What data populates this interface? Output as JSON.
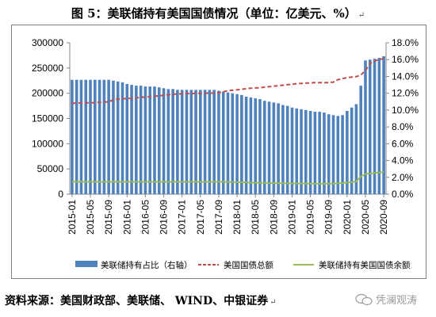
{
  "title": "图 5：美联储持有美国国债情况（单位：亿美元、%）",
  "title_mark": "↵",
  "source": "资料来源：美国财政部、美联储、 WIND、中银证券",
  "source_mark": "↵",
  "watermark": "凭澜观涛",
  "colors": {
    "bar": "#4f81bd",
    "total": "#c0504d",
    "fed": "#9bbb59"
  },
  "chart_data": {
    "type": "bar",
    "left_axis": {
      "ticks": [
        "0",
        "50000",
        "100000",
        "150000",
        "200000",
        "250000",
        "300000"
      ],
      "ylim": [
        0,
        300000
      ]
    },
    "right_axis": {
      "ticks": [
        "0.0%",
        "2.0%",
        "4.0%",
        "6.0%",
        "8.0%",
        "10.0%",
        "12.0%",
        "14.0%",
        "16.0%",
        "18.0%"
      ],
      "ylim": [
        0,
        18
      ]
    },
    "x_tick_labels": [
      "2015-01",
      "2015-05",
      "2015-09",
      "2016-01",
      "2016-05",
      "2016-09",
      "2017-01",
      "2017-05",
      "2017-09",
      "2018-01",
      "2018-05",
      "2018-09",
      "2019-01",
      "2019-05",
      "2019-09",
      "2020-01",
      "2020-05",
      "2020-09"
    ],
    "months": [
      "2015-01",
      "2015-02",
      "2015-03",
      "2015-04",
      "2015-05",
      "2015-06",
      "2015-07",
      "2015-08",
      "2015-09",
      "2015-10",
      "2015-11",
      "2015-12",
      "2016-01",
      "2016-02",
      "2016-03",
      "2016-04",
      "2016-05",
      "2016-06",
      "2016-07",
      "2016-08",
      "2016-09",
      "2016-10",
      "2016-11",
      "2016-12",
      "2017-01",
      "2017-02",
      "2017-03",
      "2017-04",
      "2017-05",
      "2017-06",
      "2017-07",
      "2017-08",
      "2017-09",
      "2017-10",
      "2017-11",
      "2017-12",
      "2018-01",
      "2018-02",
      "2018-03",
      "2018-04",
      "2018-05",
      "2018-06",
      "2018-07",
      "2018-08",
      "2018-09",
      "2018-10",
      "2018-11",
      "2018-12",
      "2019-01",
      "2019-02",
      "2019-03",
      "2019-04",
      "2019-05",
      "2019-06",
      "2019-07",
      "2019-08",
      "2019-09",
      "2019-10",
      "2019-11",
      "2019-12",
      "2020-01",
      "2020-02",
      "2020-03",
      "2020-04",
      "2020-05",
      "2020-06",
      "2020-07",
      "2020-08",
      "2020-09"
    ],
    "series": [
      {
        "name": "美联储持有占比（右轴）",
        "type": "bar",
        "axis": "right",
        "values": [
          13.6,
          13.6,
          13.6,
          13.6,
          13.6,
          13.6,
          13.6,
          13.6,
          13.6,
          13.5,
          13.4,
          13.3,
          13.1,
          13.0,
          12.9,
          12.9,
          12.8,
          12.8,
          12.8,
          12.7,
          12.6,
          12.5,
          12.5,
          12.4,
          12.4,
          12.4,
          12.4,
          12.4,
          12.4,
          12.4,
          12.4,
          12.4,
          12.3,
          12.2,
          12.1,
          12.0,
          11.9,
          11.8,
          11.6,
          11.5,
          11.4,
          11.3,
          11.1,
          11.0,
          10.9,
          10.8,
          10.6,
          10.5,
          10.3,
          10.2,
          10.1,
          10.0,
          9.9,
          9.8,
          9.8,
          9.7,
          9.5,
          9.4,
          9.3,
          9.4,
          9.9,
          10.3,
          10.7,
          12.9,
          15.9,
          16.0,
          16.1,
          16.2,
          16.4
        ]
      },
      {
        "name": "美国国债总额",
        "type": "line",
        "axis": "left",
        "dash": true,
        "values": [
          180000,
          180500,
          181000,
          181000,
          181000,
          181500,
          182000,
          182500,
          183000,
          187000,
          188500,
          189000,
          189500,
          190000,
          190500,
          192000,
          192500,
          193000,
          194000,
          195000,
          196000,
          197000,
          198000,
          198500,
          199000,
          199200,
          199500,
          199700,
          199800,
          200000,
          200300,
          200500,
          201000,
          203000,
          205000,
          206000,
          207000,
          208000,
          209000,
          210000,
          210500,
          211000,
          212000,
          213000,
          214000,
          215000,
          216000,
          217000,
          218000,
          219000,
          219500,
          220000,
          220500,
          221000,
          221000,
          221000,
          221000,
          222000,
          227000,
          229000,
          231000,
          232000,
          233000,
          236000,
          245000,
          259000,
          264000,
          267000,
          268500
        ]
      },
      {
        "name": "美联储持有美国国债余额",
        "type": "line",
        "axis": "left",
        "values": [
          24500,
          24500,
          24500,
          24500,
          24500,
          24500,
          24500,
          24500,
          24500,
          24500,
          24500,
          24500,
          24500,
          24500,
          24500,
          24500,
          24500,
          24500,
          24500,
          24500,
          24500,
          24500,
          24500,
          24500,
          24500,
          24500,
          24500,
          24500,
          24500,
          24500,
          24500,
          24500,
          24500,
          24400,
          24200,
          24000,
          23800,
          23500,
          23300,
          23000,
          22800,
          22600,
          22300,
          22000,
          21800,
          21700,
          21600,
          21500,
          21400,
          21300,
          21200,
          21100,
          21000,
          20900,
          20800,
          20700,
          20800,
          21000,
          21500,
          22000,
          23000,
          24000,
          25000,
          35000,
          40000,
          41000,
          42000,
          43000,
          44000
        ]
      }
    ]
  }
}
